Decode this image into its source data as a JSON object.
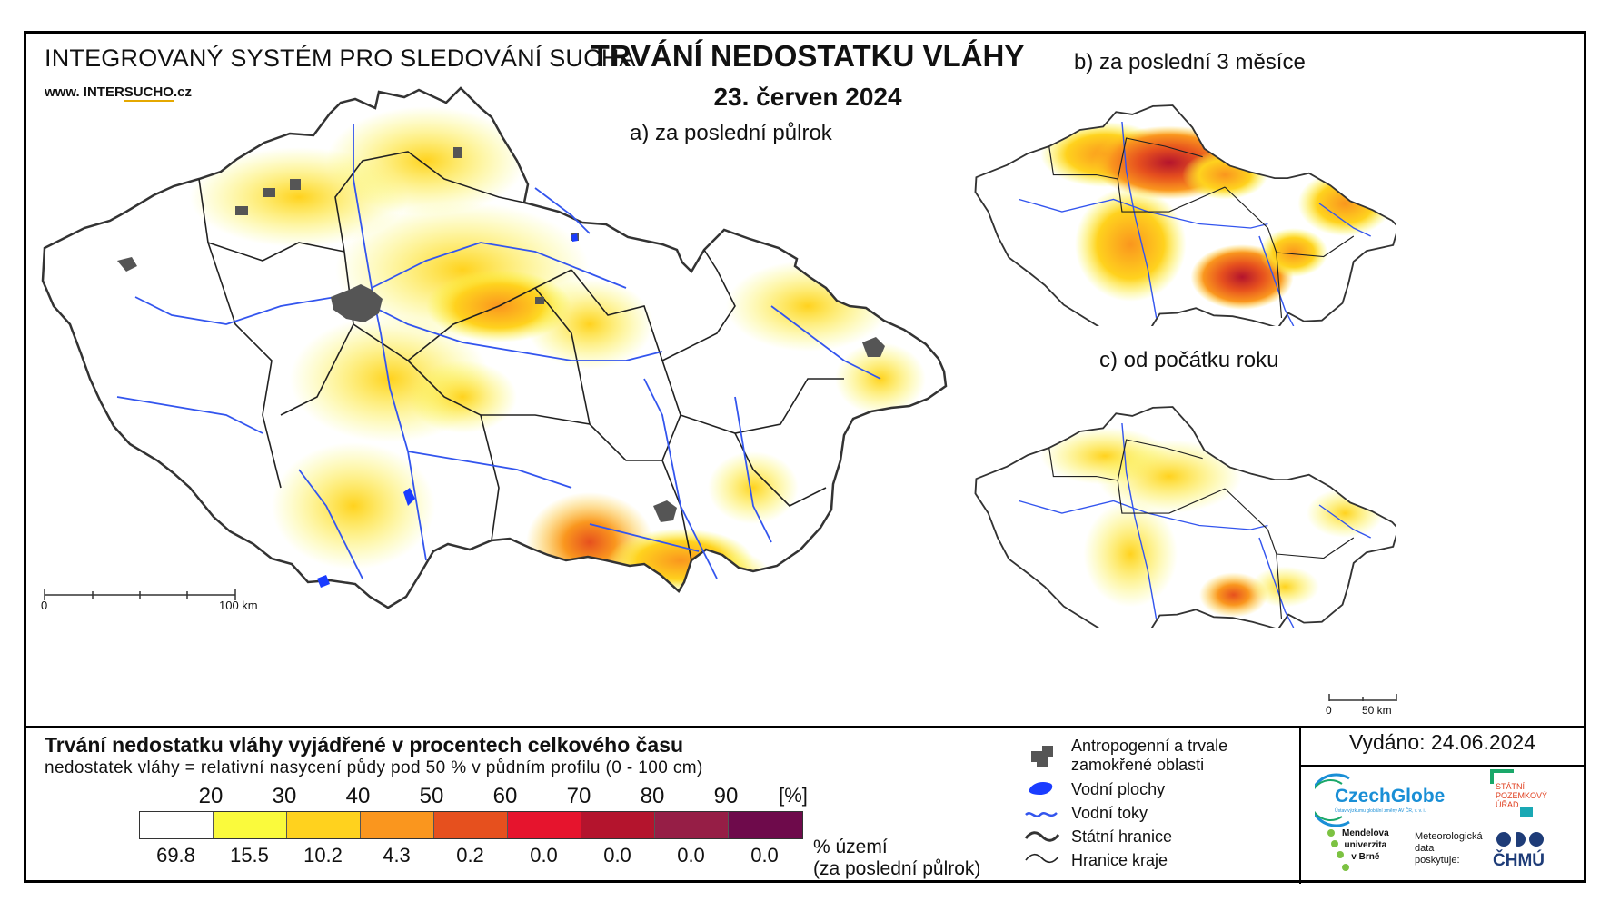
{
  "header": {
    "system_title": "INTEGROVANÝ SYSTÉM PRO SLEDOVÁNÍ SUCHA",
    "website_prefix": "www. INTER",
    "website_brand": "SUCHO",
    "website_suffix": ".cz",
    "title": "TRVÁNÍ NEDOSTATKU VLÁHY",
    "date": "23. červen 2024"
  },
  "panels": {
    "a": "a) za poslední půlrok",
    "b": "b) za poslední 3 měsíce",
    "c": "c) od počátku roku"
  },
  "scalebars": {
    "main_start": "0",
    "main_end": "100 km",
    "small_start": "0",
    "small_end": "50 km"
  },
  "legend": {
    "title": "Trvání nedostatku vláhy vyjádřené v procentech celkového času",
    "subtitle": "nedostatek vláhy = relativní nasycení půdy pod 50 % v půdním profilu (0 - 100 cm)",
    "ticks": [
      "20",
      "30",
      "40",
      "50",
      "60",
      "70",
      "80",
      "90"
    ],
    "unit": "[%]",
    "colors": [
      "#ffffff",
      "#fafa3c",
      "#ffd21e",
      "#fa961e",
      "#e6501e",
      "#e6142d",
      "#b4142d",
      "#961e46",
      "#6e0a4b"
    ],
    "area_values": [
      "69.8",
      "15.5",
      "10.2",
      "4.3",
      "0.2",
      "0.0",
      "0.0",
      "0.0",
      "0.0"
    ],
    "area_label_1": "% území",
    "area_label_2": "(za poslední půlrok)"
  },
  "map_key": {
    "urban": "Antropogenní a trvale",
    "urban_2": "zamokřené oblasti",
    "water_bodies": "Vodní plochy",
    "rivers": "Vodní toky",
    "state_border": "Státní hranice",
    "region_border": "Hranice kraje",
    "colors": {
      "urban": "#555555",
      "water": "#1a3cff",
      "river": "#3355ee"
    }
  },
  "issued": "Vydáno: 24.06.2024",
  "logos": {
    "czechglobe": "CzechGlobe",
    "czechglobe_sub": "Ústav výzkumu globální změny AV ČR, v. v. i.",
    "spu_1": "STÁTNÍ",
    "spu_2": "POZEMKOVÝ",
    "spu_3": "ÚŘAD",
    "mendel_1": "Mendelova",
    "mendel_2": "univerzita",
    "mendel_3": "v Brně",
    "meteo_1": "Meteorologická",
    "meteo_2": "data",
    "meteo_3": "poskytuje:",
    "chmu": "ČHMÚ"
  }
}
